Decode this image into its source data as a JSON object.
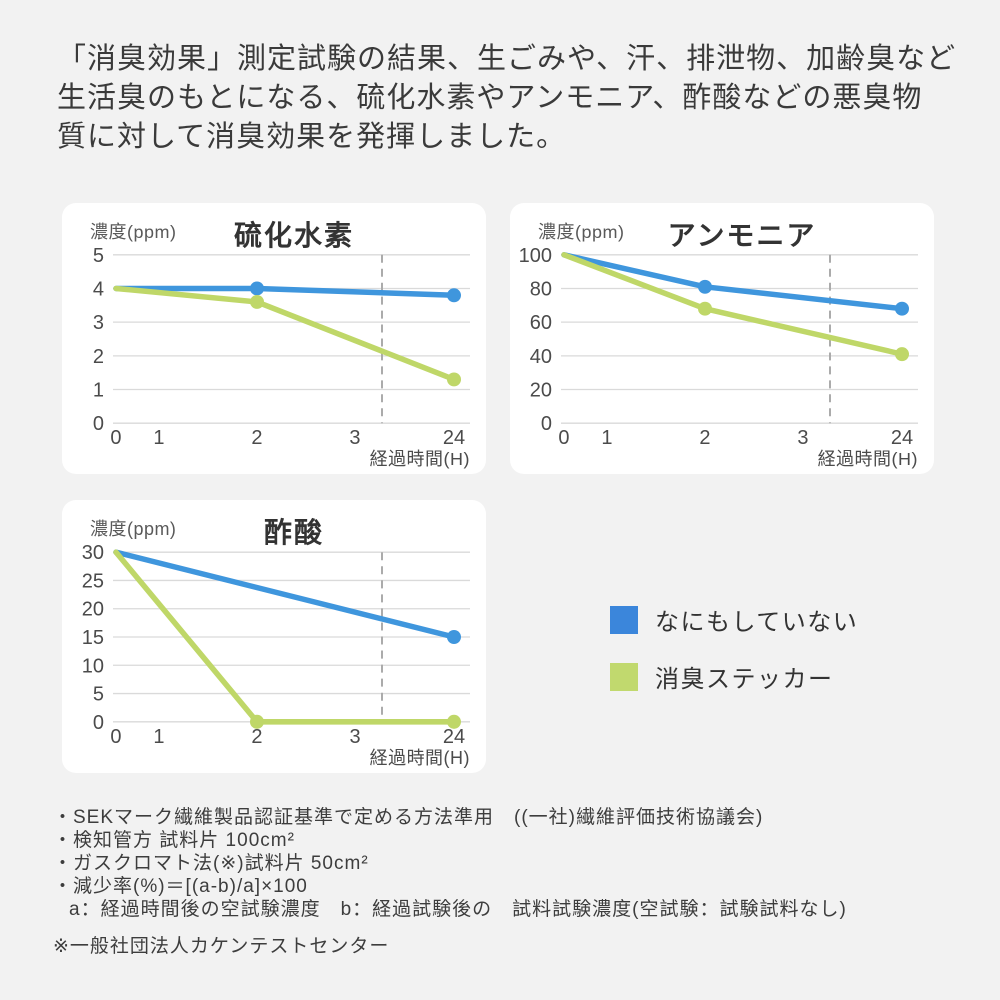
{
  "page": {
    "background": "#f2f2f2",
    "panel_background": "#ffffff",
    "text_color": "#3a3a3a"
  },
  "header": {
    "lines": [
      "「消臭効果」測定試験の結果、生ごみや、汗、排泄物、加齢臭など",
      "生活臭のもとになる、硫化水素やアンモニア、酢酸などの悪臭物",
      "質に対して消臭効果を発揮しました。"
    ]
  },
  "legend": {
    "items": [
      {
        "label": "なにもしていない",
        "color": "#3b86db"
      },
      {
        "label": "消臭ステッカー",
        "color": "#c1d96e"
      }
    ]
  },
  "footnotes": {
    "items": [
      "・SEKマーク繊維製品認証基準で定める方法準用　((一社)繊維評価技術協議会)",
      "・検知管方 試料片 100cm²",
      "・ガスクロマト法(※)試料片 50cm²",
      "・減少率(%)＝[(a-b)/a]×100",
      "a：経過時間後の空試験濃度　b：経過試験後の　試料試験濃度(空試験：試験試料なし)"
    ],
    "remark": "※一般社団法人カケンテストセンター"
  },
  "chart_data": [
    {
      "type": "line",
      "title": "硫化水素",
      "ylabel": "濃度(ppm)",
      "xlabel": "経過時間(H)",
      "x_ticks": [
        "0",
        "1",
        "2",
        "3",
        "24"
      ],
      "y_ticks": [
        "5",
        "4",
        "3",
        "2",
        "1",
        "0"
      ],
      "ymax": 5,
      "ylim": [
        0,
        5
      ],
      "grid": true,
      "dashed_guide": true,
      "series": [
        {
          "name": "なにもしていない",
          "color": "#3f96dd",
          "values": [
            {
              "x": "0",
              "y": 4,
              "dot": false
            },
            {
              "x": "2",
              "y": 4,
              "dot": true
            },
            {
              "x": "24",
              "y": 3.8,
              "dot": true
            }
          ]
        },
        {
          "name": "消臭ステッカー",
          "color": "#bfd768",
          "values": [
            {
              "x": "0",
              "y": 4,
              "dot": false
            },
            {
              "x": "2",
              "y": 3.6,
              "dot": true
            },
            {
              "x": "24",
              "y": 1.3,
              "dot": true
            }
          ]
        }
      ]
    },
    {
      "type": "line",
      "title": "アンモニア",
      "ylabel": "濃度(ppm)",
      "xlabel": "経過時間(H)",
      "x_ticks": [
        "0",
        "1",
        "2",
        "3",
        "24"
      ],
      "y_ticks": [
        "100",
        "80",
        "60",
        "40",
        "20",
        "0"
      ],
      "ymax": 100,
      "ylim": [
        0,
        100
      ],
      "grid": true,
      "dashed_guide": true,
      "series": [
        {
          "name": "なにもしていない",
          "color": "#3f96dd",
          "values": [
            {
              "x": "0",
              "y": 100,
              "dot": false
            },
            {
              "x": "2",
              "y": 81,
              "dot": true
            },
            {
              "x": "24",
              "y": 68,
              "dot": true
            }
          ]
        },
        {
          "name": "消臭ステッカー",
          "color": "#bfd768",
          "values": [
            {
              "x": "0",
              "y": 100,
              "dot": false
            },
            {
              "x": "2",
              "y": 68,
              "dot": true
            },
            {
              "x": "24",
              "y": 41,
              "dot": true
            }
          ]
        }
      ]
    },
    {
      "type": "line",
      "title": "酢酸",
      "ylabel": "濃度(ppm)",
      "xlabel": "経過時間(H)",
      "x_ticks": [
        "0",
        "1",
        "2",
        "3",
        "24"
      ],
      "y_ticks": [
        "30",
        "25",
        "20",
        "15",
        "10",
        "5",
        "0"
      ],
      "ymax": 30,
      "ylim": [
        0,
        30
      ],
      "grid": true,
      "dashed_guide": true,
      "series": [
        {
          "name": "なにもしていない",
          "color": "#3f96dd",
          "values": [
            {
              "x": "0",
              "y": 30,
              "dot": false
            },
            {
              "x": "24",
              "y": 15,
              "dot": true
            }
          ]
        },
        {
          "name": "消臭ステッカー",
          "color": "#bfd768",
          "values": [
            {
              "x": "0",
              "y": 30,
              "dot": false
            },
            {
              "x": "2",
              "y": 0,
              "dot": true
            },
            {
              "x": "24",
              "y": 0,
              "dot": true
            }
          ]
        }
      ]
    }
  ]
}
